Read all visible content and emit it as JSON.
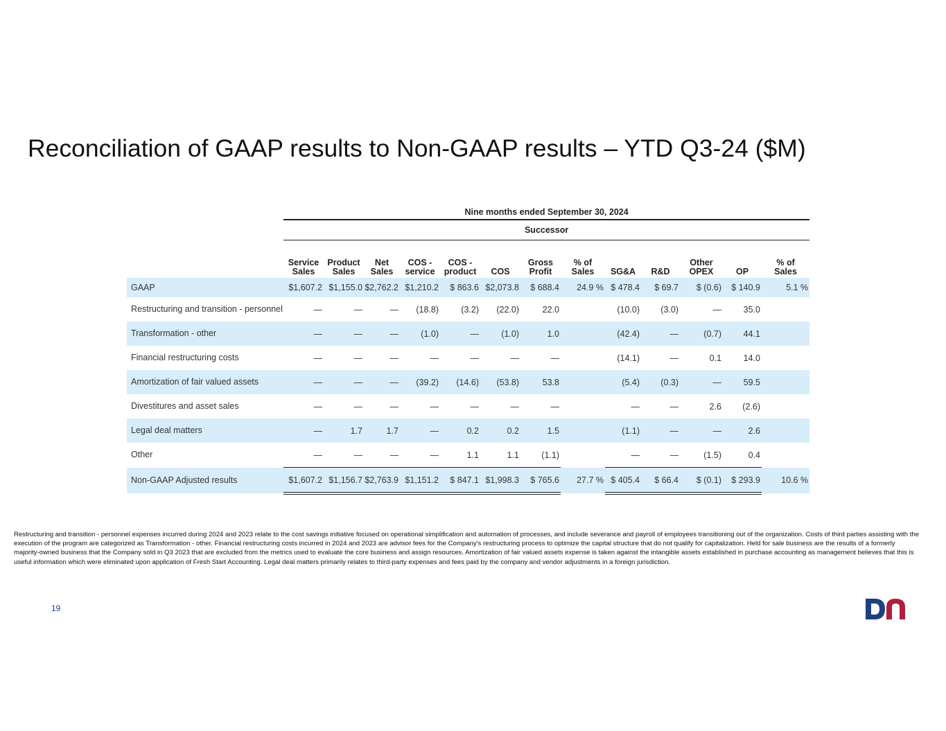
{
  "title": "Reconciliation of GAAP results to Non-GAAP results – YTD Q3-24 ($M)",
  "table": {
    "period": "Nine months ended September 30, 2024",
    "subheader": "Successor",
    "columns": [
      [
        "Service",
        "Sales"
      ],
      [
        "Product",
        "Sales"
      ],
      [
        "Net",
        "Sales"
      ],
      [
        "COS -",
        "service"
      ],
      [
        "COS -",
        "product"
      ],
      [
        "",
        "COS"
      ],
      [
        "Gross",
        "Profit"
      ],
      [
        "% of",
        "Sales"
      ],
      [
        "",
        "SG&A"
      ],
      [
        "",
        "R&D"
      ],
      [
        "Other",
        "OPEX"
      ],
      [
        "",
        "OP"
      ],
      [
        "% of",
        "Sales"
      ]
    ],
    "rows": [
      {
        "label": "GAAP",
        "values": [
          "$1,607.2",
          "$1,155.0",
          "$2,762.2",
          "$1,210.2",
          "$ 863.6",
          "$2,073.8",
          "$ 688.4",
          "24.9 %",
          "$ 478.4",
          "$   69.7",
          "$   (0.6)",
          "$ 140.9",
          "5.1 %"
        ]
      },
      {
        "label": "Restructuring and transition - personnel",
        "values": [
          "—",
          "—",
          "—",
          "(18.8)",
          "(3.2)",
          "(22.0)",
          "22.0",
          "",
          "(10.0)",
          "(3.0)",
          "—",
          "35.0",
          ""
        ]
      },
      {
        "label": "Transformation - other",
        "values": [
          "—",
          "—",
          "—",
          "(1.0)",
          "—",
          "(1.0)",
          "1.0",
          "",
          "(42.4)",
          "—",
          "(0.7)",
          "44.1",
          ""
        ]
      },
      {
        "label": "Financial restructuring costs",
        "values": [
          "—",
          "—",
          "—",
          "—",
          "—",
          "—",
          "—",
          "",
          "(14.1)",
          "—",
          "0.1",
          "14.0",
          ""
        ]
      },
      {
        "label": "Amortization of fair valued assets",
        "values": [
          "—",
          "—",
          "—",
          "(39.2)",
          "(14.6)",
          "(53.8)",
          "53.8",
          "",
          "(5.4)",
          "(0.3)",
          "—",
          "59.5",
          ""
        ]
      },
      {
        "label": "Divestitures and asset sales",
        "values": [
          "—",
          "—",
          "—",
          "—",
          "—",
          "—",
          "—",
          "",
          "—",
          "—",
          "2.6",
          "(2.6)",
          ""
        ]
      },
      {
        "label": "Legal deal matters",
        "values": [
          "—",
          "1.7",
          "1.7",
          "—",
          "0.2",
          "0.2",
          "1.5",
          "",
          "(1.1)",
          "—",
          "—",
          "2.6",
          ""
        ]
      },
      {
        "label": "Other",
        "values": [
          "—",
          "—",
          "—",
          "—",
          "1.1",
          "1.1",
          "(1.1)",
          "",
          "—",
          "—",
          "(1.5)",
          "0.4",
          ""
        ]
      },
      {
        "label": "Non-GAAP Adjusted results",
        "values": [
          "$1,607.2",
          "$1,156.7",
          "$2,763.9",
          "$1,151.2",
          "$ 847.1",
          "$1,998.3",
          "$ 765.6",
          "27.7 %",
          "$ 405.4",
          "$   66.4",
          "$   (0.1)",
          "$ 293.9",
          "10.6 %"
        ]
      }
    ]
  },
  "footnote": "Restructuring and transition - personnel expenses incurred during 2024 and 2023 relate to the cost savings initiative focused on operational simplification and automation of processes, and include severance and payroll of employees transitioning out of the organization. Costs of third parties assisting with the execution of the program are categorized as Transformation - other. Financial restructuring costs incurred in 2024 and 2023 are advisor fees for the Company's restructuring process to optimize the capital structure that do not qualify for capitalization. Held for sale business are the results of a formerly majority-owned business that the Company sold in Q3 2023 that are excluded from the metrics used to evaluate the core business and assign resources. Amortization of fair valued assets expense is taken against the intangible assets established in purchase accounting as management believes that this is useful information which were eliminated upon application of Fresh Start Accounting. Legal deal matters primarily relates to third-party expenses and fees paid by the company and vendor adjustments in a foreign jurisdiction.",
  "page_number": "19",
  "logo": {
    "icon": "dn-logo-icon",
    "colors": {
      "d": "#1f3f7f",
      "n": "#b01f3c"
    }
  },
  "accent": {
    "row_shade": "#d7eefa"
  }
}
